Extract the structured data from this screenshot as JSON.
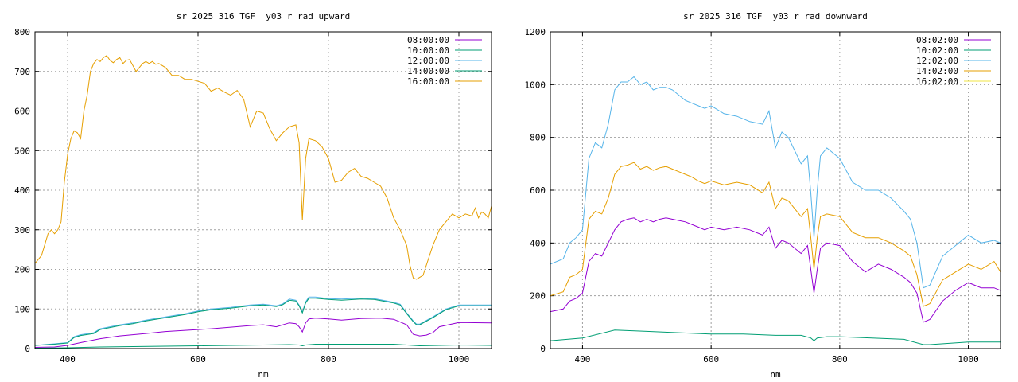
{
  "chart_data": [
    {
      "type": "line",
      "title": "sr_2025_316_TGF__y03_r_rad_upward",
      "xlabel": "nm",
      "ylabel": "",
      "xlim": [
        350,
        1050
      ],
      "ylim": [
        0,
        800
      ],
      "xticks": [
        400,
        600,
        800,
        1000
      ],
      "yticks": [
        0,
        100,
        200,
        300,
        400,
        500,
        600,
        700,
        800
      ],
      "grid": true,
      "legend": "top-right",
      "series": [
        {
          "name": "08:00:00",
          "color": "#9400d3",
          "x": [
            350,
            380,
            400,
            420,
            450,
            480,
            500,
            520,
            550,
            580,
            600,
            620,
            650,
            680,
            700,
            720,
            740,
            750,
            755,
            760,
            765,
            770,
            780,
            800,
            820,
            850,
            880,
            900,
            920,
            930,
            940,
            950,
            960,
            970,
            1000,
            1050
          ],
          "y": [
            3,
            4,
            8,
            15,
            25,
            32,
            35,
            38,
            43,
            46,
            48,
            50,
            54,
            58,
            60,
            55,
            65,
            63,
            55,
            42,
            65,
            75,
            77,
            75,
            72,
            76,
            77,
            74,
            60,
            36,
            32,
            34,
            40,
            55,
            66,
            65
          ]
        },
        {
          "name": "10:00:00",
          "color": "#009e73",
          "x": [
            350,
            400,
            450,
            500,
            550,
            600,
            650,
            700,
            740,
            755,
            760,
            765,
            780,
            800,
            850,
            900,
            930,
            940,
            1000,
            1050
          ],
          "y": [
            1,
            2,
            4,
            5,
            6,
            7,
            8,
            9,
            10,
            9,
            7,
            9,
            11,
            11,
            11,
            11,
            8,
            7,
            9,
            8
          ]
        },
        {
          "name": "12:00:00",
          "color": "#56b4e9",
          "x": [
            350,
            380,
            400,
            410,
            420,
            440,
            450,
            480,
            500,
            520,
            550,
            580,
            600,
            620,
            650,
            680,
            700,
            720,
            730,
            740,
            750,
            755,
            760,
            765,
            770,
            780,
            800,
            820,
            850,
            870,
            890,
            900,
            910,
            920,
            930,
            935,
            940,
            960,
            980,
            1000,
            1050
          ],
          "y": [
            8,
            12,
            15,
            30,
            35,
            40,
            50,
            60,
            65,
            72,
            80,
            88,
            95,
            100,
            104,
            110,
            112,
            108,
            113,
            125,
            122,
            110,
            92,
            118,
            130,
            130,
            126,
            125,
            127,
            126,
            120,
            117,
            112,
            90,
            70,
            62,
            62,
            80,
            100,
            110,
            110
          ]
        },
        {
          "name": "14:00:00",
          "color": "#009e73",
          "x": [
            350,
            380,
            400,
            410,
            420,
            440,
            450,
            480,
            500,
            520,
            550,
            580,
            600,
            620,
            650,
            680,
            700,
            720,
            730,
            740,
            750,
            755,
            760,
            765,
            770,
            780,
            800,
            820,
            850,
            870,
            890,
            900,
            910,
            920,
            930,
            935,
            940,
            960,
            980,
            1000,
            1050
          ],
          "y": [
            8,
            11,
            14,
            28,
            33,
            38,
            48,
            58,
            63,
            70,
            78,
            86,
            93,
            98,
            102,
            108,
            110,
            106,
            111,
            122,
            120,
            108,
            90,
            115,
            127,
            127,
            124,
            122,
            125,
            124,
            118,
            115,
            110,
            88,
            68,
            60,
            60,
            78,
            98,
            108,
            108
          ]
        },
        {
          "name": "16:00:00",
          "color": "#e69f00",
          "x": [
            350,
            360,
            370,
            375,
            380,
            385,
            390,
            395,
            400,
            405,
            410,
            415,
            420,
            425,
            430,
            435,
            440,
            445,
            450,
            455,
            460,
            465,
            470,
            475,
            480,
            485,
            490,
            495,
            500,
            505,
            510,
            515,
            520,
            525,
            530,
            535,
            540,
            545,
            550,
            560,
            570,
            580,
            590,
            600,
            610,
            620,
            630,
            640,
            650,
            660,
            670,
            680,
            690,
            700,
            710,
            720,
            730,
            740,
            750,
            755,
            760,
            765,
            770,
            780,
            790,
            800,
            810,
            820,
            830,
            840,
            850,
            860,
            870,
            880,
            890,
            900,
            910,
            920,
            925,
            930,
            935,
            940,
            945,
            950,
            960,
            970,
            980,
            990,
            1000,
            1010,
            1020,
            1025,
            1030,
            1035,
            1040,
            1045,
            1050
          ],
          "y": [
            215,
            235,
            290,
            300,
            290,
            300,
            320,
            420,
            490,
            530,
            550,
            545,
            530,
            600,
            640,
            700,
            720,
            730,
            725,
            735,
            740,
            728,
            722,
            730,
            735,
            720,
            728,
            730,
            715,
            700,
            710,
            720,
            725,
            720,
            725,
            718,
            720,
            715,
            710,
            690,
            690,
            680,
            680,
            675,
            670,
            650,
            658,
            648,
            640,
            652,
            630,
            560,
            600,
            595,
            555,
            525,
            545,
            560,
            565,
            520,
            325,
            480,
            530,
            525,
            510,
            480,
            420,
            425,
            445,
            455,
            435,
            430,
            420,
            410,
            380,
            330,
            300,
            260,
            210,
            178,
            175,
            180,
            185,
            210,
            260,
            300,
            320,
            340,
            330,
            340,
            335,
            355,
            330,
            345,
            340,
            330,
            360
          ]
        }
      ]
    },
    {
      "type": "line",
      "title": "sr_2025_316_TGF__y03_r_rad_downward",
      "xlabel": "nm",
      "ylabel": "",
      "xlim": [
        350,
        1050
      ],
      "ylim": [
        0,
        1200
      ],
      "xticks": [
        400,
        600,
        800,
        1000
      ],
      "yticks": [
        0,
        200,
        400,
        600,
        800,
        1000,
        1200
      ],
      "grid": true,
      "legend": "top-right",
      "series": [
        {
          "name": "08:02:00",
          "color": "#9400d3",
          "x": [
            350,
            370,
            380,
            390,
            400,
            410,
            420,
            430,
            440,
            450,
            460,
            470,
            480,
            490,
            500,
            510,
            520,
            530,
            540,
            550,
            560,
            570,
            580,
            590,
            600,
            620,
            640,
            660,
            680,
            690,
            700,
            710,
            720,
            740,
            750,
            755,
            760,
            765,
            770,
            780,
            800,
            820,
            840,
            860,
            880,
            900,
            910,
            920,
            930,
            940,
            960,
            980,
            1000,
            1020,
            1040,
            1050
          ],
          "y": [
            140,
            150,
            180,
            190,
            210,
            330,
            360,
            350,
            400,
            450,
            480,
            490,
            495,
            480,
            490,
            480,
            490,
            495,
            490,
            485,
            480,
            470,
            460,
            450,
            460,
            450,
            460,
            450,
            430,
            460,
            380,
            410,
            400,
            360,
            390,
            300,
            210,
            300,
            380,
            400,
            390,
            330,
            290,
            320,
            300,
            270,
            250,
            210,
            100,
            110,
            180,
            220,
            250,
            230,
            230,
            220
          ]
        },
        {
          "name": "10:02:00",
          "color": "#009e73",
          "x": [
            350,
            400,
            450,
            500,
            550,
            600,
            650,
            700,
            740,
            755,
            760,
            765,
            780,
            800,
            850,
            900,
            930,
            940,
            1000,
            1050
          ],
          "y": [
            30,
            40,
            70,
            65,
            60,
            55,
            55,
            50,
            50,
            40,
            30,
            40,
            45,
            45,
            40,
            35,
            15,
            15,
            25,
            25
          ]
        },
        {
          "name": "12:02:00",
          "color": "#56b4e9",
          "x": [
            350,
            370,
            380,
            390,
            400,
            410,
            420,
            430,
            440,
            450,
            460,
            470,
            480,
            490,
            500,
            510,
            520,
            530,
            540,
            550,
            560,
            570,
            580,
            590,
            600,
            620,
            640,
            660,
            680,
            690,
            700,
            710,
            720,
            740,
            750,
            755,
            760,
            765,
            770,
            780,
            800,
            820,
            840,
            860,
            880,
            900,
            910,
            920,
            930,
            940,
            960,
            980,
            1000,
            1020,
            1040,
            1050
          ],
          "y": [
            320,
            340,
            400,
            420,
            450,
            720,
            780,
            760,
            850,
            980,
            1010,
            1010,
            1030,
            1000,
            1010,
            980,
            990,
            990,
            980,
            960,
            940,
            930,
            920,
            910,
            920,
            890,
            880,
            860,
            850,
            900,
            760,
            820,
            800,
            700,
            730,
            590,
            420,
            600,
            730,
            760,
            720,
            630,
            600,
            600,
            570,
            520,
            490,
            400,
            230,
            240,
            350,
            390,
            430,
            400,
            410,
            400
          ]
        },
        {
          "name": "14:02:00",
          "color": "#e69f00",
          "x": [
            350,
            370,
            380,
            390,
            400,
            410,
            420,
            430,
            440,
            450,
            460,
            470,
            480,
            490,
            500,
            510,
            520,
            530,
            540,
            550,
            560,
            570,
            580,
            590,
            600,
            620,
            640,
            660,
            680,
            690,
            700,
            710,
            720,
            740,
            750,
            755,
            760,
            765,
            770,
            780,
            800,
            820,
            840,
            860,
            880,
            900,
            910,
            920,
            930,
            940,
            960,
            980,
            1000,
            1020,
            1040,
            1050
          ],
          "y": [
            200,
            215,
            270,
            280,
            300,
            490,
            520,
            510,
            570,
            660,
            690,
            695,
            705,
            680,
            690,
            675,
            685,
            690,
            680,
            670,
            660,
            650,
            635,
            625,
            635,
            620,
            630,
            620,
            590,
            630,
            530,
            570,
            560,
            500,
            530,
            420,
            300,
            420,
            500,
            510,
            500,
            440,
            420,
            420,
            400,
            370,
            350,
            280,
            160,
            170,
            260,
            290,
            320,
            300,
            330,
            290
          ]
        },
        {
          "name": "16:02:00",
          "color": "#f0e442",
          "x": [
            350,
            400,
            450,
            500,
            550,
            600,
            650,
            700,
            750,
            800,
            850,
            900,
            950,
            1000,
            1050
          ],
          "y": [
            0,
            0,
            0,
            0,
            0,
            0,
            0,
            0,
            0,
            0,
            0,
            0,
            0,
            0,
            0
          ]
        }
      ]
    }
  ]
}
